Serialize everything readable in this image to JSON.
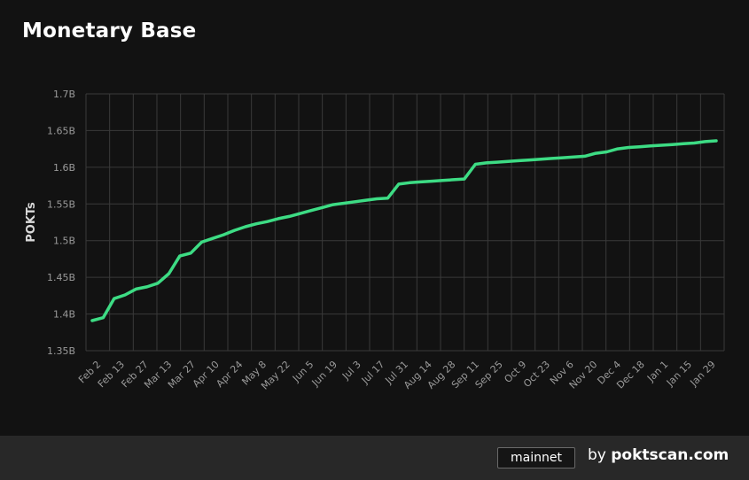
{
  "title": "Monetary Base",
  "chart_data": {
    "type": "line",
    "ylabel": "POKTs",
    "xlabel": "",
    "ylim": [
      1.35,
      1.7
    ],
    "y_unit": "B",
    "y_ticks": [
      "1.35B",
      "1.4B",
      "1.45B",
      "1.5B",
      "1.55B",
      "1.6B",
      "1.65B",
      "1.7B"
    ],
    "x_ticks": [
      "Feb 2",
      "Feb 13",
      "Feb 27",
      "Mar 13",
      "Mar 27",
      "Apr 10",
      "Apr 24",
      "May 8",
      "May 22",
      "Jun 5",
      "Jun 19",
      "Jul 3",
      "Jul 17",
      "Jul 31",
      "Aug 14",
      "Aug 28",
      "Sep 11",
      "Sep 25",
      "Oct 9",
      "Oct 23",
      "Nov 6",
      "Nov 20",
      "Dec 4",
      "Dec 18",
      "Jan 1",
      "Jan 15",
      "Jan 29"
    ],
    "grid": true,
    "line_color": "#3ddc84",
    "series": [
      {
        "values": [
          1.391,
          1.395,
          1.421,
          1.426,
          1.434,
          1.437,
          1.442,
          1.455,
          1.479,
          1.483,
          1.498,
          1.503,
          1.508,
          1.514,
          1.519,
          1.523,
          1.526,
          1.53,
          1.533,
          1.537,
          1.541,
          1.545,
          1.549,
          1.551,
          1.553,
          1.555,
          1.557,
          1.558,
          1.577,
          1.579,
          1.58,
          1.581,
          1.582,
          1.583,
          1.584,
          1.604,
          1.606,
          1.607,
          1.608,
          1.609,
          1.61,
          1.611,
          1.612,
          1.613,
          1.614,
          1.615,
          1.619,
          1.621,
          1.625,
          1.627,
          1.628,
          1.629,
          1.63,
          1.631,
          1.632,
          1.633,
          1.635,
          1.636
        ]
      }
    ]
  },
  "footer": {
    "network_badge": "mainnet",
    "by_label": "by",
    "site": "poktscan.com"
  }
}
